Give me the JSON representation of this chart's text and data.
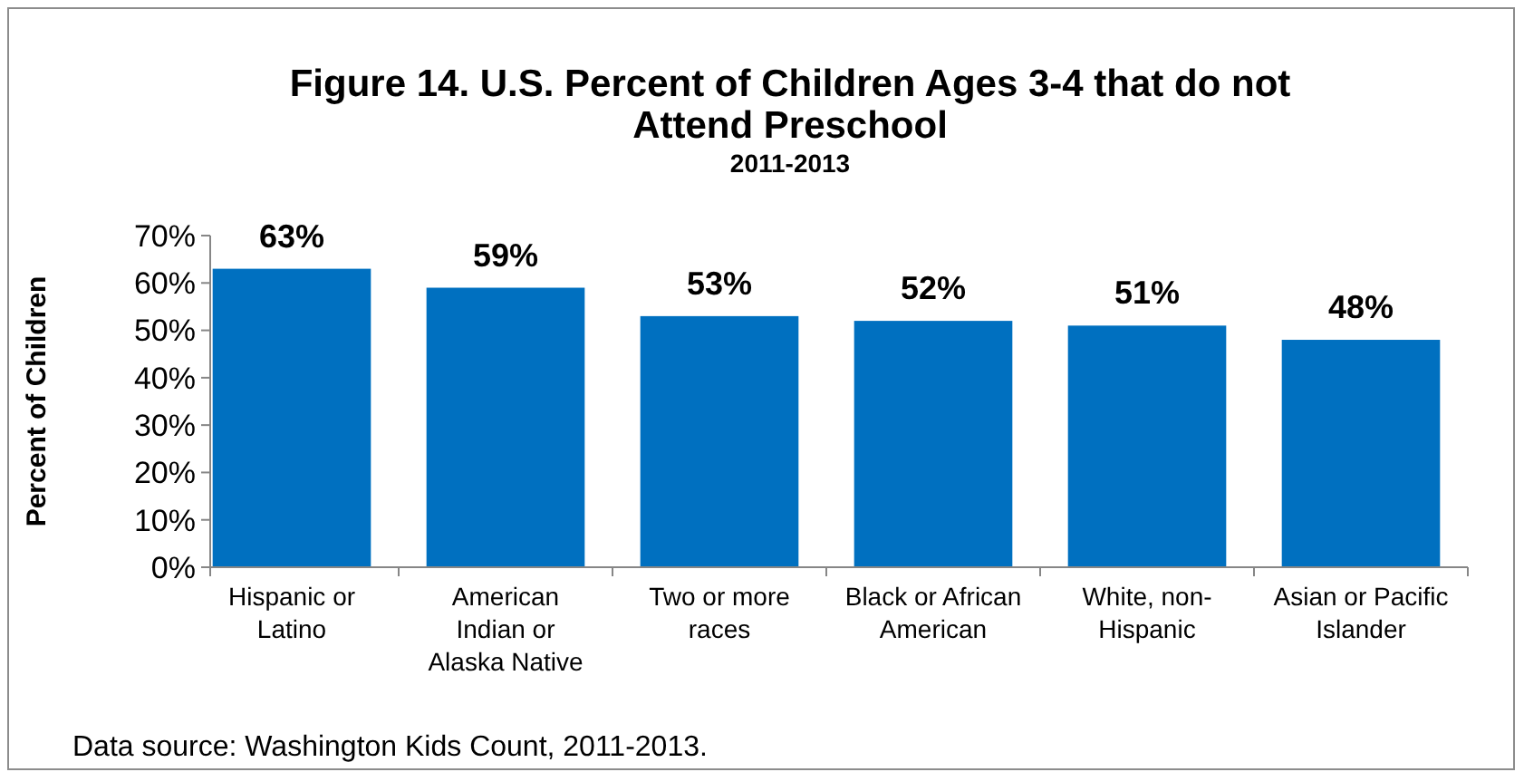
{
  "chart_data": {
    "type": "bar",
    "title": "Figure 14. U.S. Percent of Children Ages 3-4 that do not Attend Preschool",
    "subtitle": "2011-2013",
    "ylabel": "Percent of Children",
    "categories": [
      "Hispanic or Latino",
      "American Indian or Alaska Native",
      "Two or more races",
      "Black or African American",
      "White, non-Hispanic",
      "Asian or Pacific Islander"
    ],
    "values": [
      63,
      59,
      53,
      52,
      51,
      48
    ],
    "color": "#0070c0",
    "value_labels": [
      "63%",
      "59%",
      "53%",
      "52%",
      "51%",
      "48%"
    ],
    "ylim": [
      0,
      70
    ],
    "yticks": [
      {
        "value": 0,
        "label": "0%"
      },
      {
        "value": 10,
        "label": "10%"
      },
      {
        "value": 20,
        "label": "20%"
      },
      {
        "value": 30,
        "label": "30%"
      },
      {
        "value": 40,
        "label": "40%"
      },
      {
        "value": 50,
        "label": "50%"
      },
      {
        "value": 60,
        "label": "60%"
      },
      {
        "value": 70,
        "label": "70%"
      }
    ],
    "annotations": [
      "Data source: Washington Kids Count, 2011-2013."
    ]
  }
}
